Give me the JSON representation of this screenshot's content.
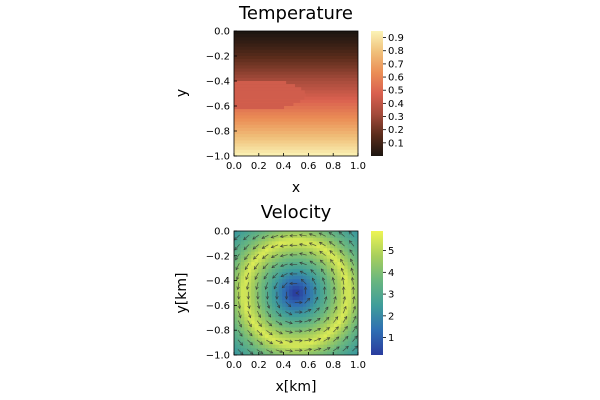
{
  "chart_data": [
    {
      "type": "heatmap",
      "title": "Temperature",
      "xlabel": "x",
      "ylabel": "y",
      "xlim": [
        0.0,
        1.0
      ],
      "ylim": [
        -1.0,
        0.0
      ],
      "x_ticks": [
        "0.0",
        "0.2",
        "0.4",
        "0.6",
        "0.8",
        "1.0"
      ],
      "y_ticks": [
        "0.0",
        "−0.2",
        "−0.4",
        "−0.6",
        "−0.8",
        "−1.0"
      ],
      "colorbar": {
        "range": [
          0.0,
          0.95
        ],
        "ticks": [
          "0.1",
          "0.2",
          "0.3",
          "0.4",
          "0.5",
          "0.6",
          "0.7",
          "0.8",
          "0.9"
        ],
        "colormap": "heat",
        "stops": [
          "#1b1510",
          "#5a2c1b",
          "#a34a3a",
          "#d9604f",
          "#eb8e56",
          "#f0c07a",
          "#fbf3b6"
        ]
      },
      "field": {
        "description_values": "temperature increases with depth from ~0 at y=0 to ~0.95 at y=-1; warm anomaly (~0.45) in band y from -0.40 to -0.62 for x < ~0.58"
      },
      "anomaly": {
        "x_max": 0.58,
        "y_top": -0.4,
        "y_bottom": -0.62,
        "value": 0.45
      }
    },
    {
      "type": "heatmap",
      "title": "Velocity",
      "xlabel": "x[km]",
      "ylabel": "y[km]",
      "xlim": [
        0.0,
        1.0
      ],
      "ylim": [
        -1.0,
        0.0
      ],
      "x_ticks": [
        "0.0",
        "0.2",
        "0.4",
        "0.6",
        "0.8",
        "1.0"
      ],
      "y_ticks": [
        "0.0",
        "−0.2",
        "−0.4",
        "−0.6",
        "−0.8",
        "−1.0"
      ],
      "colorbar": {
        "range": [
          0.2,
          5.9
        ],
        "ticks": [
          "1",
          "2",
          "3",
          "4",
          "5"
        ],
        "colormap": "viridis-like",
        "stops": [
          "#2a3c9e",
          "#2f6fb3",
          "#3f9d9a",
          "#69b67f",
          "#a8cf5c",
          "#eef554"
        ]
      },
      "vortex_center": [
        0.5,
        -0.5
      ],
      "arrow_grid": 13
    }
  ]
}
